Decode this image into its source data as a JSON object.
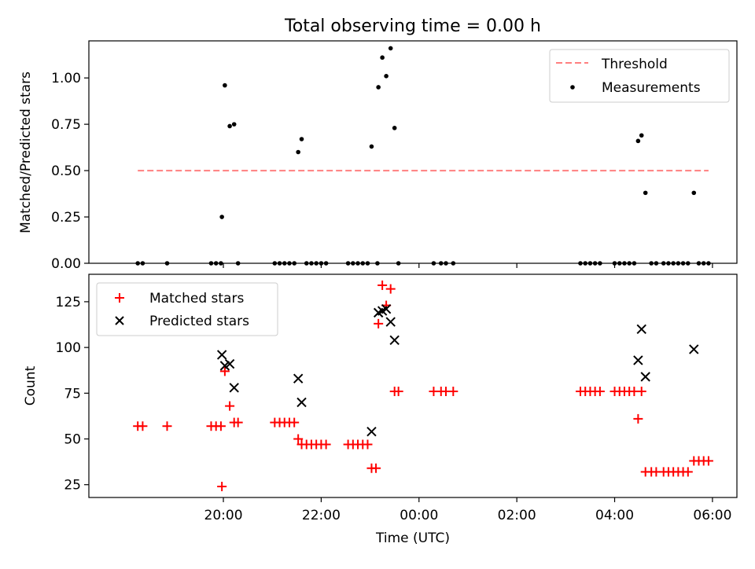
{
  "chart_data": [
    {
      "type": "scatter",
      "title": "Total observing time = 0.00 h",
      "xlabel": "",
      "ylabel": "Matched/Predicted stars",
      "ylim": [
        0,
        1.2
      ],
      "yticks": [
        "0.00",
        "0.25",
        "0.50",
        "0.75",
        "1.00"
      ],
      "x_unit": "hours relative to 00:00 UTC",
      "legend_position": "upper-right",
      "series": [
        {
          "name": "Threshold",
          "kind": "line",
          "color": "#ff7f7f",
          "points": [
            [
              -5.75,
              0.5
            ],
            [
              5.92,
              0.5
            ]
          ]
        },
        {
          "name": "Measurements",
          "kind": "dots",
          "color": "#000000",
          "points": [
            [
              -5.75,
              0
            ],
            [
              -5.65,
              0
            ],
            [
              -5.15,
              0
            ],
            [
              -4.25,
              0
            ],
            [
              -4.15,
              0
            ],
            [
              -4.05,
              0
            ],
            [
              -4.03,
              0.25
            ],
            [
              -3.97,
              0.96
            ],
            [
              -3.87,
              0.74
            ],
            [
              -3.78,
              0.75
            ],
            [
              -3.7,
              0
            ],
            [
              -2.95,
              0
            ],
            [
              -2.85,
              0
            ],
            [
              -2.75,
              0
            ],
            [
              -2.65,
              0
            ],
            [
              -2.55,
              0
            ],
            [
              -2.47,
              0.6
            ],
            [
              -2.4,
              0.67
            ],
            [
              -2.3,
              0
            ],
            [
              -2.2,
              0
            ],
            [
              -2.1,
              0
            ],
            [
              -2.0,
              0
            ],
            [
              -1.9,
              0
            ],
            [
              -1.45,
              0
            ],
            [
              -1.35,
              0
            ],
            [
              -1.25,
              0
            ],
            [
              -1.15,
              0
            ],
            [
              -1.05,
              0
            ],
            [
              -0.97,
              0.63
            ],
            [
              -0.85,
              0
            ],
            [
              -0.83,
              0.95
            ],
            [
              -0.75,
              1.11
            ],
            [
              -0.67,
              1.01
            ],
            [
              -0.58,
              1.16
            ],
            [
              -0.5,
              0.73
            ],
            [
              -0.42,
              0
            ],
            [
              0.3,
              0
            ],
            [
              0.45,
              0
            ],
            [
              0.55,
              0
            ],
            [
              0.7,
              0
            ],
            [
              3.3,
              0
            ],
            [
              3.4,
              0
            ],
            [
              3.5,
              0
            ],
            [
              3.6,
              0
            ],
            [
              3.7,
              0
            ],
            [
              4.0,
              0
            ],
            [
              4.1,
              0
            ],
            [
              4.2,
              0
            ],
            [
              4.3,
              0
            ],
            [
              4.4,
              0
            ],
            [
              4.48,
              0.66
            ],
            [
              4.55,
              0.69
            ],
            [
              4.63,
              0.38
            ],
            [
              4.75,
              0
            ],
            [
              4.85,
              0
            ],
            [
              5.0,
              0
            ],
            [
              5.1,
              0
            ],
            [
              5.2,
              0
            ],
            [
              5.3,
              0
            ],
            [
              5.4,
              0
            ],
            [
              5.5,
              0
            ],
            [
              5.62,
              0.38
            ],
            [
              5.72,
              0
            ],
            [
              5.82,
              0
            ],
            [
              5.92,
              0
            ]
          ]
        }
      ]
    },
    {
      "type": "scatter",
      "title": "",
      "xlabel": "Time (UTC)",
      "ylabel": "Count",
      "ylim": [
        18,
        140
      ],
      "yticks": [
        "25",
        "50",
        "75",
        "100",
        "125"
      ],
      "xlim": [
        -6.75,
        6.5
      ],
      "xticks": [
        {
          "value": -4,
          "label": "20:00"
        },
        {
          "value": -2,
          "label": "22:00"
        },
        {
          "value": 0,
          "label": "00:00"
        },
        {
          "value": 2,
          "label": "02:00"
        },
        {
          "value": 4,
          "label": "04:00"
        },
        {
          "value": 6,
          "label": "06:00"
        }
      ],
      "legend_position": "upper-left",
      "series": [
        {
          "name": "Matched stars",
          "marker": "+",
          "color": "#ff0000",
          "points": [
            [
              -5.75,
              57
            ],
            [
              -5.65,
              57
            ],
            [
              -5.15,
              57
            ],
            [
              -4.25,
              57
            ],
            [
              -4.15,
              57
            ],
            [
              -4.05,
              57
            ],
            [
              -4.03,
              24
            ],
            [
              -3.97,
              87
            ],
            [
              -3.87,
              68
            ],
            [
              -3.78,
              59
            ],
            [
              -3.7,
              59
            ],
            [
              -2.95,
              59
            ],
            [
              -2.85,
              59
            ],
            [
              -2.75,
              59
            ],
            [
              -2.65,
              59
            ],
            [
              -2.55,
              59
            ],
            [
              -2.47,
              50
            ],
            [
              -2.4,
              47
            ],
            [
              -2.3,
              47
            ],
            [
              -2.2,
              47
            ],
            [
              -2.1,
              47
            ],
            [
              -2.0,
              47
            ],
            [
              -1.9,
              47
            ],
            [
              -1.45,
              47
            ],
            [
              -1.35,
              47
            ],
            [
              -1.25,
              47
            ],
            [
              -1.15,
              47
            ],
            [
              -1.05,
              47
            ],
            [
              -0.97,
              34
            ],
            [
              -0.88,
              34
            ],
            [
              -0.83,
              113
            ],
            [
              -0.75,
              134
            ],
            [
              -0.67,
              123
            ],
            [
              -0.58,
              132
            ],
            [
              -0.5,
              76
            ],
            [
              -0.42,
              76
            ],
            [
              0.3,
              76
            ],
            [
              0.45,
              76
            ],
            [
              0.55,
              76
            ],
            [
              0.7,
              76
            ],
            [
              3.3,
              76
            ],
            [
              3.4,
              76
            ],
            [
              3.5,
              76
            ],
            [
              3.6,
              76
            ],
            [
              3.7,
              76
            ],
            [
              4.0,
              76
            ],
            [
              4.1,
              76
            ],
            [
              4.2,
              76
            ],
            [
              4.3,
              76
            ],
            [
              4.4,
              76
            ],
            [
              4.48,
              61
            ],
            [
              4.55,
              76
            ],
            [
              4.63,
              32
            ],
            [
              4.75,
              32
            ],
            [
              4.85,
              32
            ],
            [
              5.0,
              32
            ],
            [
              5.1,
              32
            ],
            [
              5.2,
              32
            ],
            [
              5.3,
              32
            ],
            [
              5.4,
              32
            ],
            [
              5.5,
              32
            ],
            [
              5.62,
              38
            ],
            [
              5.72,
              38
            ],
            [
              5.82,
              38
            ],
            [
              5.92,
              38
            ]
          ]
        },
        {
          "name": "Predicted stars",
          "marker": "x",
          "color": "#000000",
          "points": [
            [
              -4.03,
              96
            ],
            [
              -3.97,
              90
            ],
            [
              -3.87,
              91
            ],
            [
              -3.78,
              78
            ],
            [
              -2.47,
              83
            ],
            [
              -2.4,
              70
            ],
            [
              -0.97,
              54
            ],
            [
              -0.83,
              119
            ],
            [
              -0.75,
              120
            ],
            [
              -0.67,
              121
            ],
            [
              -0.58,
              114
            ],
            [
              -0.5,
              104
            ],
            [
              4.48,
              93
            ],
            [
              4.55,
              110
            ],
            [
              4.63,
              84
            ],
            [
              5.62,
              99
            ]
          ]
        }
      ]
    }
  ]
}
